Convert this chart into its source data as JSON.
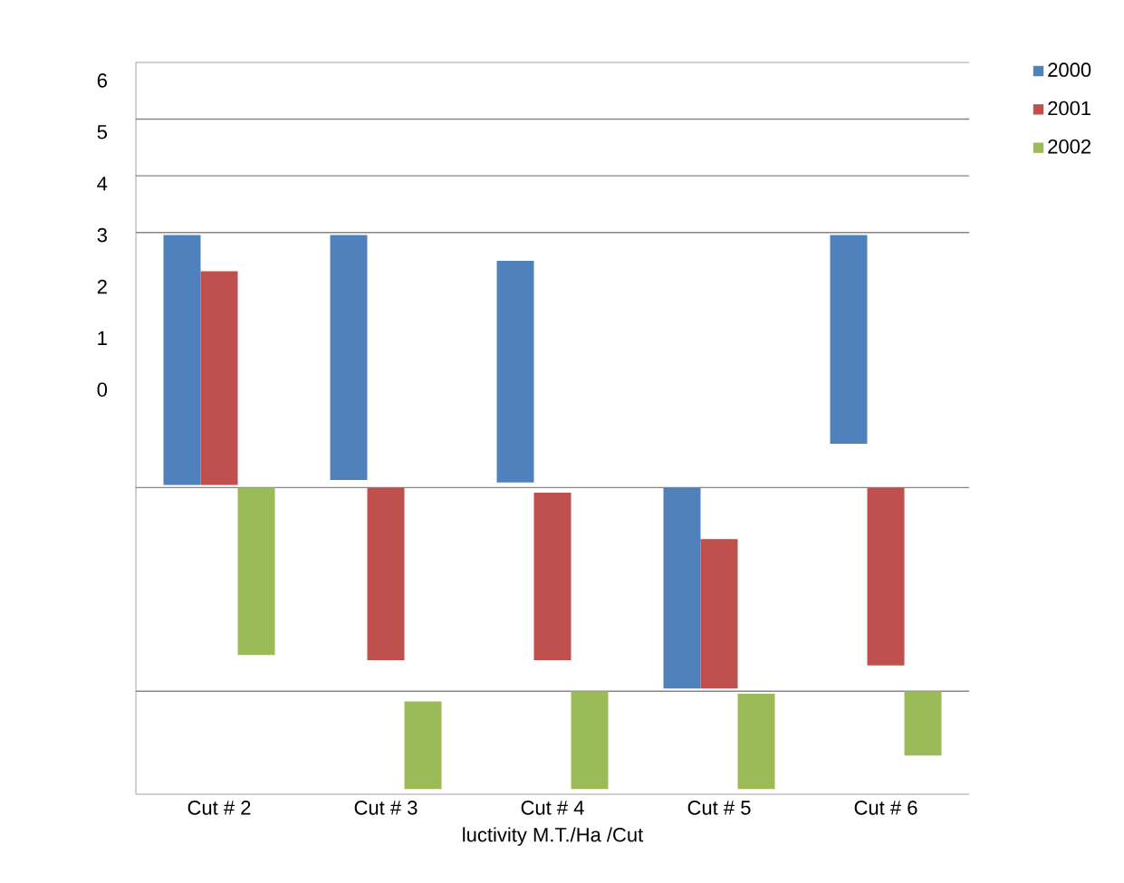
{
  "chart_data": {
    "type": "bar",
    "xlabel": "luctivity M.T./Ha /Cut",
    "categories": [
      "Cut # 2",
      "Cut # 3",
      "Cut # 4",
      "Cut # 5",
      "Cut # 6"
    ],
    "series": [
      {
        "name": "2000",
        "color": "#4f81bd",
        "base": [
          -1.85,
          -1.75,
          -1.8,
          -5.8,
          -1.05
        ],
        "values": [
          4.85,
          4.75,
          4.3,
          3.9,
          4.05
        ]
      },
      {
        "name": "2001",
        "color": "#c0504d",
        "base": [
          -1.85,
          -5.25,
          -5.25,
          -5.8,
          -5.35
        ],
        "values": [
          4.15,
          3.35,
          3.25,
          2.9,
          3.45
        ]
      },
      {
        "name": "2002",
        "color": "#9bbb59",
        "base": [
          -5.15,
          -7.75,
          -7.75,
          -7.75,
          -7.1
        ],
        "values": [
          3.25,
          1.7,
          1.9,
          1.85,
          1.25
        ]
      }
    ],
    "ylim": [
      -7.85,
      6.35
    ],
    "yticks": [
      0,
      1,
      2,
      3,
      4,
      5,
      6
    ],
    "ref_lines": [
      {
        "axis": "y",
        "value": 5.25,
        "color": "#868686"
      },
      {
        "axis": "y",
        "value": 4.15,
        "color": "#868686"
      },
      {
        "axis": "y",
        "value": 3.05,
        "color": "#868686"
      },
      {
        "axis": "y",
        "value": -1.9,
        "color": "#868686"
      },
      {
        "axis": "y",
        "value": -5.85,
        "color": "#868686"
      }
    ],
    "legend": "top right",
    "grid": false
  }
}
